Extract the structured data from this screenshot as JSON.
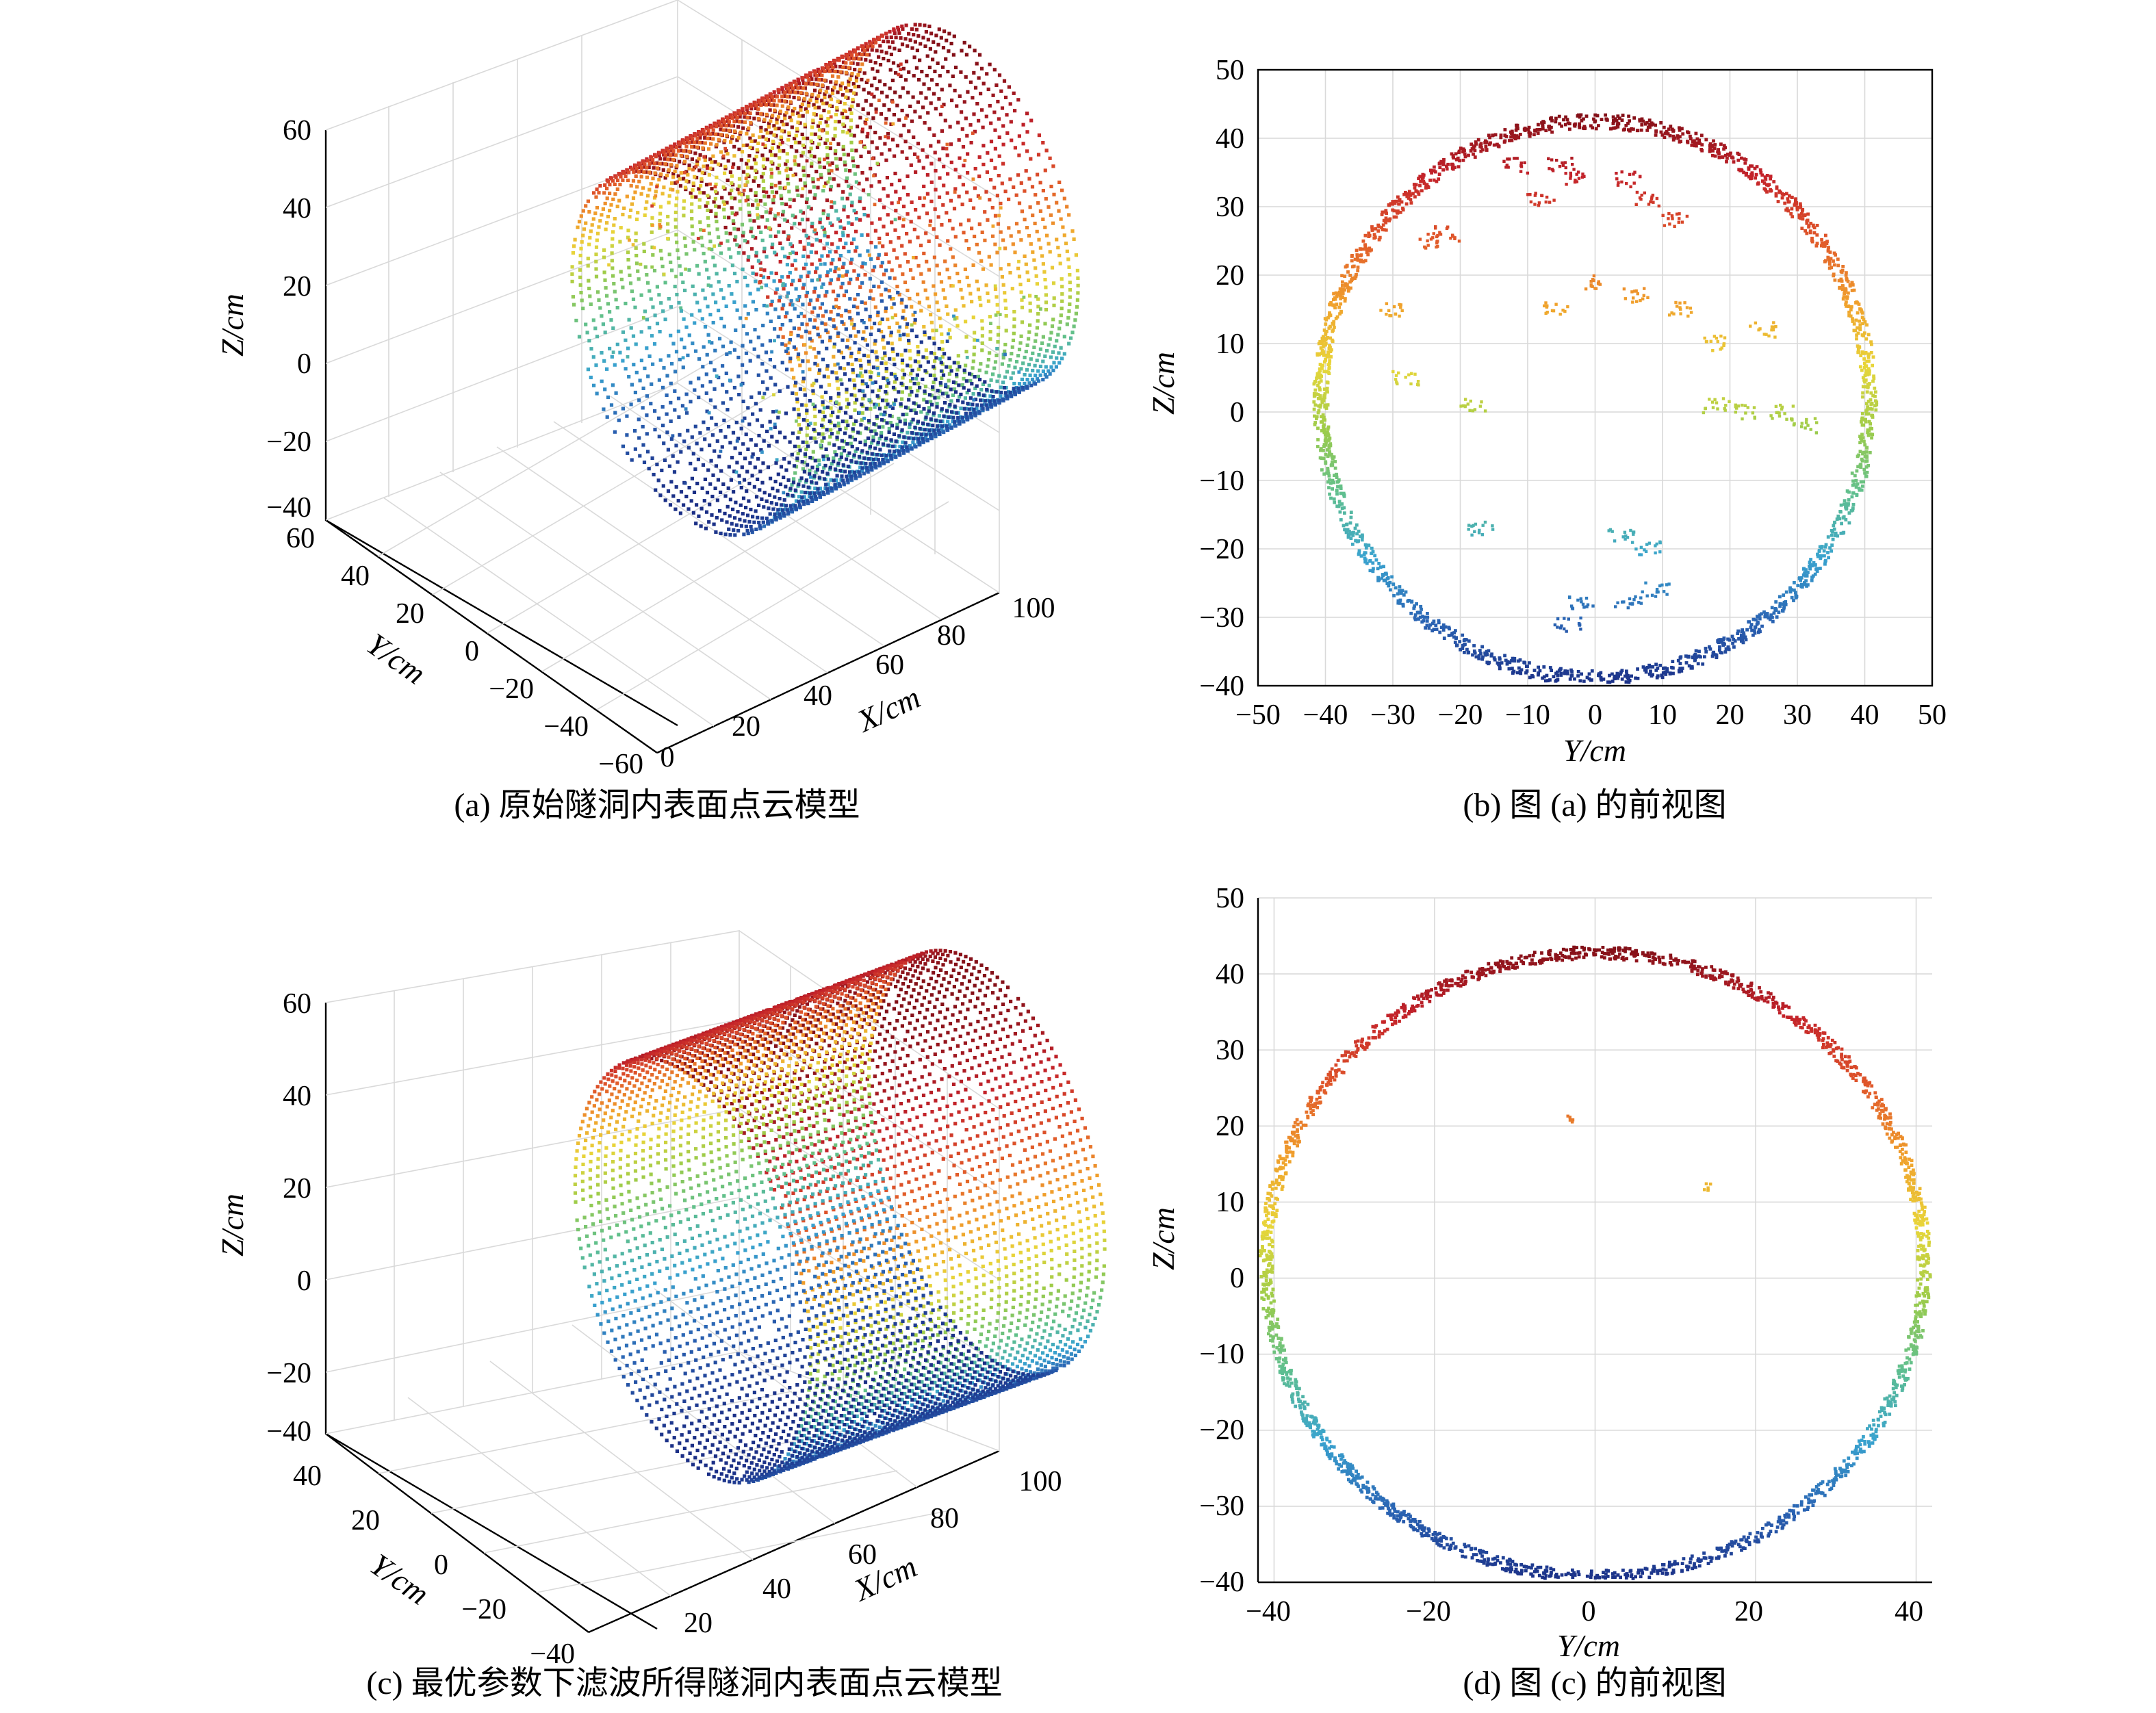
{
  "colors": {
    "colormap": [
      "#1b2f86",
      "#2a63b3",
      "#39a3cf",
      "#5fbf8f",
      "#9ccc4a",
      "#e8d63a",
      "#f0a02c",
      "#e0572a",
      "#c3222a",
      "#7f0f17"
    ]
  },
  "chart_data": [
    {
      "type": "scatter",
      "panel": "a",
      "view": "3d",
      "caption": "(a) 原始隧洞内表面点云模型",
      "xlabel": "X/cm",
      "ylabel": "Y/cm",
      "zlabel": "Z/cm",
      "x_ticks": [
        "0",
        "20",
        "40",
        "60",
        "80",
        "100"
      ],
      "y_ticks": [
        "60",
        "40",
        "20",
        "0",
        "−20",
        "−40",
        "−60"
      ],
      "z_ticks": [
        "60",
        "40",
        "20",
        "0",
        "−20",
        "−40"
      ],
      "xlim": [
        0,
        100
      ],
      "ylim": [
        -60,
        60
      ],
      "zlim": [
        -40,
        60
      ],
      "cylinder": {
        "radius_cm": 42,
        "length_cm": [
          8,
          92
        ],
        "rings": 36
      },
      "noise": "with interior noise points",
      "colormap": "jet by Z (blue low, red high)"
    },
    {
      "type": "scatter",
      "panel": "b",
      "view": "front (Y–Z)",
      "caption": "(b) 图 (a) 的前视图",
      "xlabel": "Y/cm",
      "ylabel": "Z/cm",
      "x_ticks": [
        "−50",
        "−40",
        "−30",
        "−20",
        "−10",
        "0",
        "10",
        "20",
        "30",
        "40",
        "50"
      ],
      "y_ticks": [
        "50",
        "40",
        "30",
        "20",
        "10",
        "0",
        "−10",
        "−20",
        "−30",
        "−40"
      ],
      "xlim": [
        -50,
        50
      ],
      "ylim": [
        -40,
        50
      ],
      "ring": {
        "center": [
          0,
          1.8
        ],
        "radius": 40.7
      },
      "noise_clusters": [
        {
          "y": -17,
          "z": -17
        },
        {
          "y": -5,
          "z": 36
        },
        {
          "y": -12,
          "z": 36
        },
        {
          "y": -8,
          "z": 31
        },
        {
          "y": -3,
          "z": 34
        },
        {
          "y": 5,
          "z": 34
        },
        {
          "y": 8,
          "z": 31
        },
        {
          "y": 12,
          "z": 28
        },
        {
          "y": -22,
          "z": 26
        },
        {
          "y": -25,
          "z": 25
        },
        {
          "y": -6,
          "z": 15
        },
        {
          "y": 0,
          "z": 19
        },
        {
          "y": 6,
          "z": 17
        },
        {
          "y": 13,
          "z": 15
        },
        {
          "y": -28,
          "z": 5
        },
        {
          "y": -18,
          "z": 1
        },
        {
          "y": 18,
          "z": 1
        },
        {
          "y": 22,
          "z": 0
        },
        {
          "y": 28,
          "z": 0
        },
        {
          "y": 31,
          "z": -2
        },
        {
          "y": 4,
          "z": -18
        },
        {
          "y": 8,
          "z": -20
        },
        {
          "y": -2,
          "z": -28
        },
        {
          "y": 5,
          "z": -28
        },
        {
          "y": 9,
          "z": -26
        },
        {
          "y": -4,
          "z": -31
        },
        {
          "y": 18,
          "z": 10
        },
        {
          "y": 25,
          "z": 12
        },
        {
          "y": -30,
          "z": 15
        }
      ]
    },
    {
      "type": "scatter",
      "panel": "c",
      "view": "3d",
      "caption": "(c) 最优参数下滤波所得隧洞内表面点云模型",
      "xlabel": "X/cm",
      "ylabel": "Y/cm",
      "zlabel": "Z/cm",
      "x_ticks": [
        "20",
        "40",
        "60",
        "80",
        "100"
      ],
      "y_ticks": [
        "40",
        "20",
        "0",
        "−20",
        "−40"
      ],
      "z_ticks": [
        "60",
        "40",
        "20",
        "0",
        "−20",
        "−40"
      ],
      "xlim": [
        10,
        100
      ],
      "ylim": [
        -45,
        45
      ],
      "zlim": [
        -40,
        60
      ],
      "cylinder": {
        "radius_cm": 42,
        "length_cm": [
          10,
          95
        ],
        "rings": 40
      },
      "noise": "filtered",
      "colormap": "jet by Z (blue low, red high)"
    },
    {
      "type": "scatter",
      "panel": "d",
      "view": "front (Y–Z)",
      "caption": "(d) 图 (c) 的前视图",
      "xlabel": "Y/cm",
      "ylabel": "Z/cm",
      "x_ticks": [
        "−40",
        "−20",
        "0",
        "20",
        "40"
      ],
      "y_ticks": [
        "50",
        "40",
        "30",
        "20",
        "10",
        "0",
        "−10",
        "−20",
        "−30",
        "−40"
      ],
      "xlim": [
        -42,
        42
      ],
      "ylim": [
        -40,
        50
      ],
      "ring": {
        "center": [
          0,
          1.8
        ],
        "radius": 41
      },
      "noise_clusters": [
        {
          "y": -3,
          "z": 21
        },
        {
          "y": 14,
          "z": 12
        }
      ]
    }
  ]
}
